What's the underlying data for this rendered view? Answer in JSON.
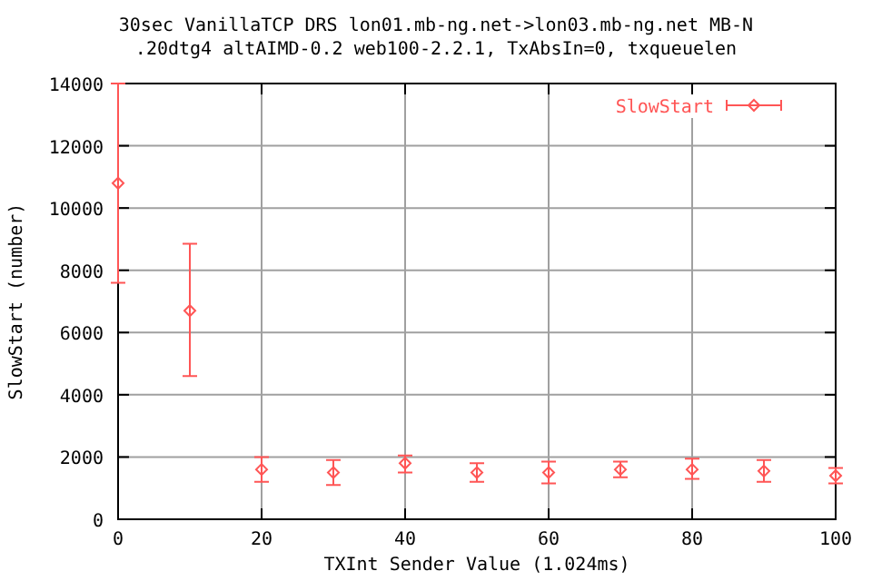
{
  "chart_data": {
    "type": "scatter",
    "title": "30sec VanillaTCP DRS lon01.mb-ng.net->lon03.mb-ng.net MB-N",
    "subtitle": ".20dtg4 altAIMD-0.2 web100-2.2.1, TxAbsIn=0, txqueuelen",
    "xlabel": "TXInt Sender Value (1.024ms)",
    "ylabel": "SlowStart (number)",
    "x": [
      0,
      10,
      20,
      30,
      40,
      50,
      60,
      70,
      80,
      90,
      100
    ],
    "series": [
      {
        "name": "SlowStart",
        "color": "#ff5555",
        "values": [
          10800,
          6700,
          1600,
          1500,
          1800,
          1500,
          1500,
          1600,
          1600,
          1550,
          1400
        ],
        "errors": [
          [
            7600,
            14000
          ],
          [
            4600,
            8850
          ],
          [
            1200,
            2000
          ],
          [
            1100,
            1900
          ],
          [
            1500,
            2050
          ],
          [
            1200,
            1800
          ],
          [
            1150,
            1850
          ],
          [
            1350,
            1850
          ],
          [
            1300,
            1950
          ],
          [
            1200,
            1900
          ],
          [
            1150,
            1650
          ]
        ]
      }
    ],
    "xlim": [
      0,
      100
    ],
    "xticks": [
      0,
      20,
      40,
      60,
      80,
      100
    ],
    "ylim": [
      0,
      14000
    ],
    "yticks": [
      0,
      2000,
      4000,
      6000,
      8000,
      10000,
      12000,
      14000
    ],
    "grid": true,
    "legend": "top right",
    "marker": "diamond"
  }
}
